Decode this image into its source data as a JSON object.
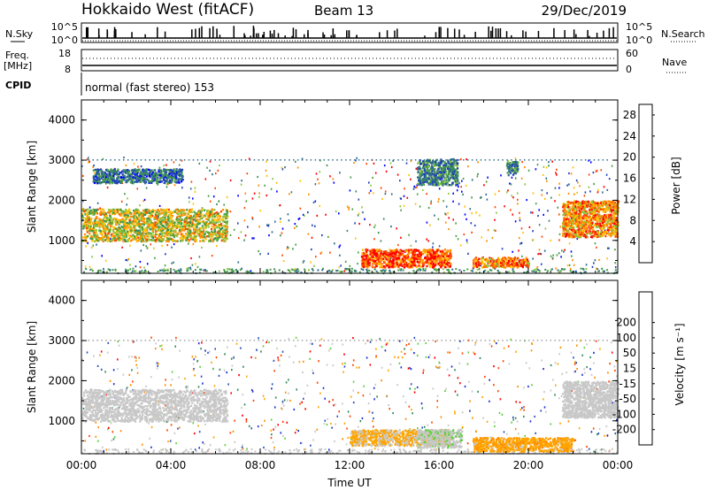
{
  "header": {
    "station": "Hokkaido West (fitACF)",
    "beam": "Beam 13",
    "date": "29/Dec/2019"
  },
  "top_panels": {
    "nsky_label": "N.Sky",
    "nsearch_label": "N.Search",
    "noise_ticks_left": [
      "10^5",
      "10^0"
    ],
    "noise_ticks_right": [
      "10^5",
      "10^0"
    ],
    "freq_label": "Freq.",
    "freq_unit": "[MHz]",
    "freq_ticks": [
      "18",
      "8"
    ],
    "nave_label": "Nave",
    "nave_ticks": [
      "60",
      "0"
    ],
    "cpid_label": "CPID",
    "cpid_text": "normal (fast stereo) 153"
  },
  "colors": {
    "power_scale": [
      "#0000ff",
      "#1f3fbf",
      "#2e6b8f",
      "#3a8a5a",
      "#48a040",
      "#8cc63f",
      "#ffc000",
      "#ff8c00",
      "#ff4500",
      "#ff0000"
    ],
    "velocity_scale": [
      "#ff0000",
      "#ff4500",
      "#ff8c00",
      "#ffa500",
      "#c8c8c8",
      "#c8c8c8",
      "#5fd040",
      "#2e8b57",
      "#2a4fbf",
      "#1a2fd0"
    ],
    "ground_scatter": "#a0a0a0"
  },
  "chart_data": [
    {
      "type": "heatmap",
      "name_of_quantity": "Power",
      "ylabel": "Slant Range [km]",
      "y_ticks": [
        "1000",
        "2000",
        "3000",
        "4000"
      ],
      "ylim": [
        180,
        4500
      ],
      "xlim_hours": [
        0,
        24
      ],
      "colorbar_label": "Power [dB]",
      "colorbar_ticks": [
        "4",
        "8",
        "12",
        "16",
        "20",
        "24",
        "28"
      ],
      "colorbar_range": [
        0,
        30
      ],
      "features": [
        {
          "t0": 0.0,
          "t1": 6.5,
          "r0": 1000,
          "r1": 1800,
          "value": 18
        },
        {
          "t0": 0.5,
          "t1": 4.5,
          "r0": 2450,
          "r1": 2800,
          "value": 8
        },
        {
          "t0": 12.5,
          "t1": 16.5,
          "r0": 350,
          "r1": 800,
          "value": 26
        },
        {
          "t0": 17.5,
          "t1": 20.0,
          "r0": 350,
          "r1": 600,
          "value": 24
        },
        {
          "t0": 21.5,
          "t1": 24.0,
          "r0": 1100,
          "r1": 2000,
          "value": 22
        },
        {
          "t0": 15.0,
          "t1": 16.8,
          "r0": 2400,
          "r1": 3050,
          "value": 10
        },
        {
          "t0": 19.0,
          "t1": 19.5,
          "r0": 2650,
          "r1": 3000,
          "value": 10
        }
      ]
    },
    {
      "type": "heatmap",
      "name_of_quantity": "Velocity",
      "ylabel": "Slant Range [km]",
      "y_ticks": [
        "1000",
        "2000",
        "3000",
        "4000"
      ],
      "ylim": [
        180,
        4500
      ],
      "xlim_hours": [
        0,
        24
      ],
      "x_ticks": [
        "00:00",
        "04:00",
        "08:00",
        "12:00",
        "16:00",
        "20:00",
        "00:00"
      ],
      "xlabel": "Time UT",
      "colorbar_label": "Velocity [m s⁻¹]",
      "colorbar_ticks": [
        "-200",
        "-100",
        "-50",
        "-15",
        "15",
        "50",
        "100",
        "200"
      ],
      "colorbar_range": [
        -250,
        250
      ],
      "features": [
        {
          "t0": 0.0,
          "t1": 6.5,
          "r0": 1000,
          "r1": 1800,
          "value": 0
        },
        {
          "t0": 12.0,
          "t1": 16.5,
          "r0": 400,
          "r1": 800,
          "value": -60
        },
        {
          "t0": 15.0,
          "t1": 17.0,
          "r0": 350,
          "r1": 800,
          "value": 30
        },
        {
          "t0": 17.5,
          "t1": 22.0,
          "r0": 250,
          "r1": 600,
          "value": -80
        },
        {
          "t0": 21.5,
          "t1": 24.0,
          "r0": 1100,
          "r1": 2000,
          "value": 0
        }
      ]
    }
  ]
}
